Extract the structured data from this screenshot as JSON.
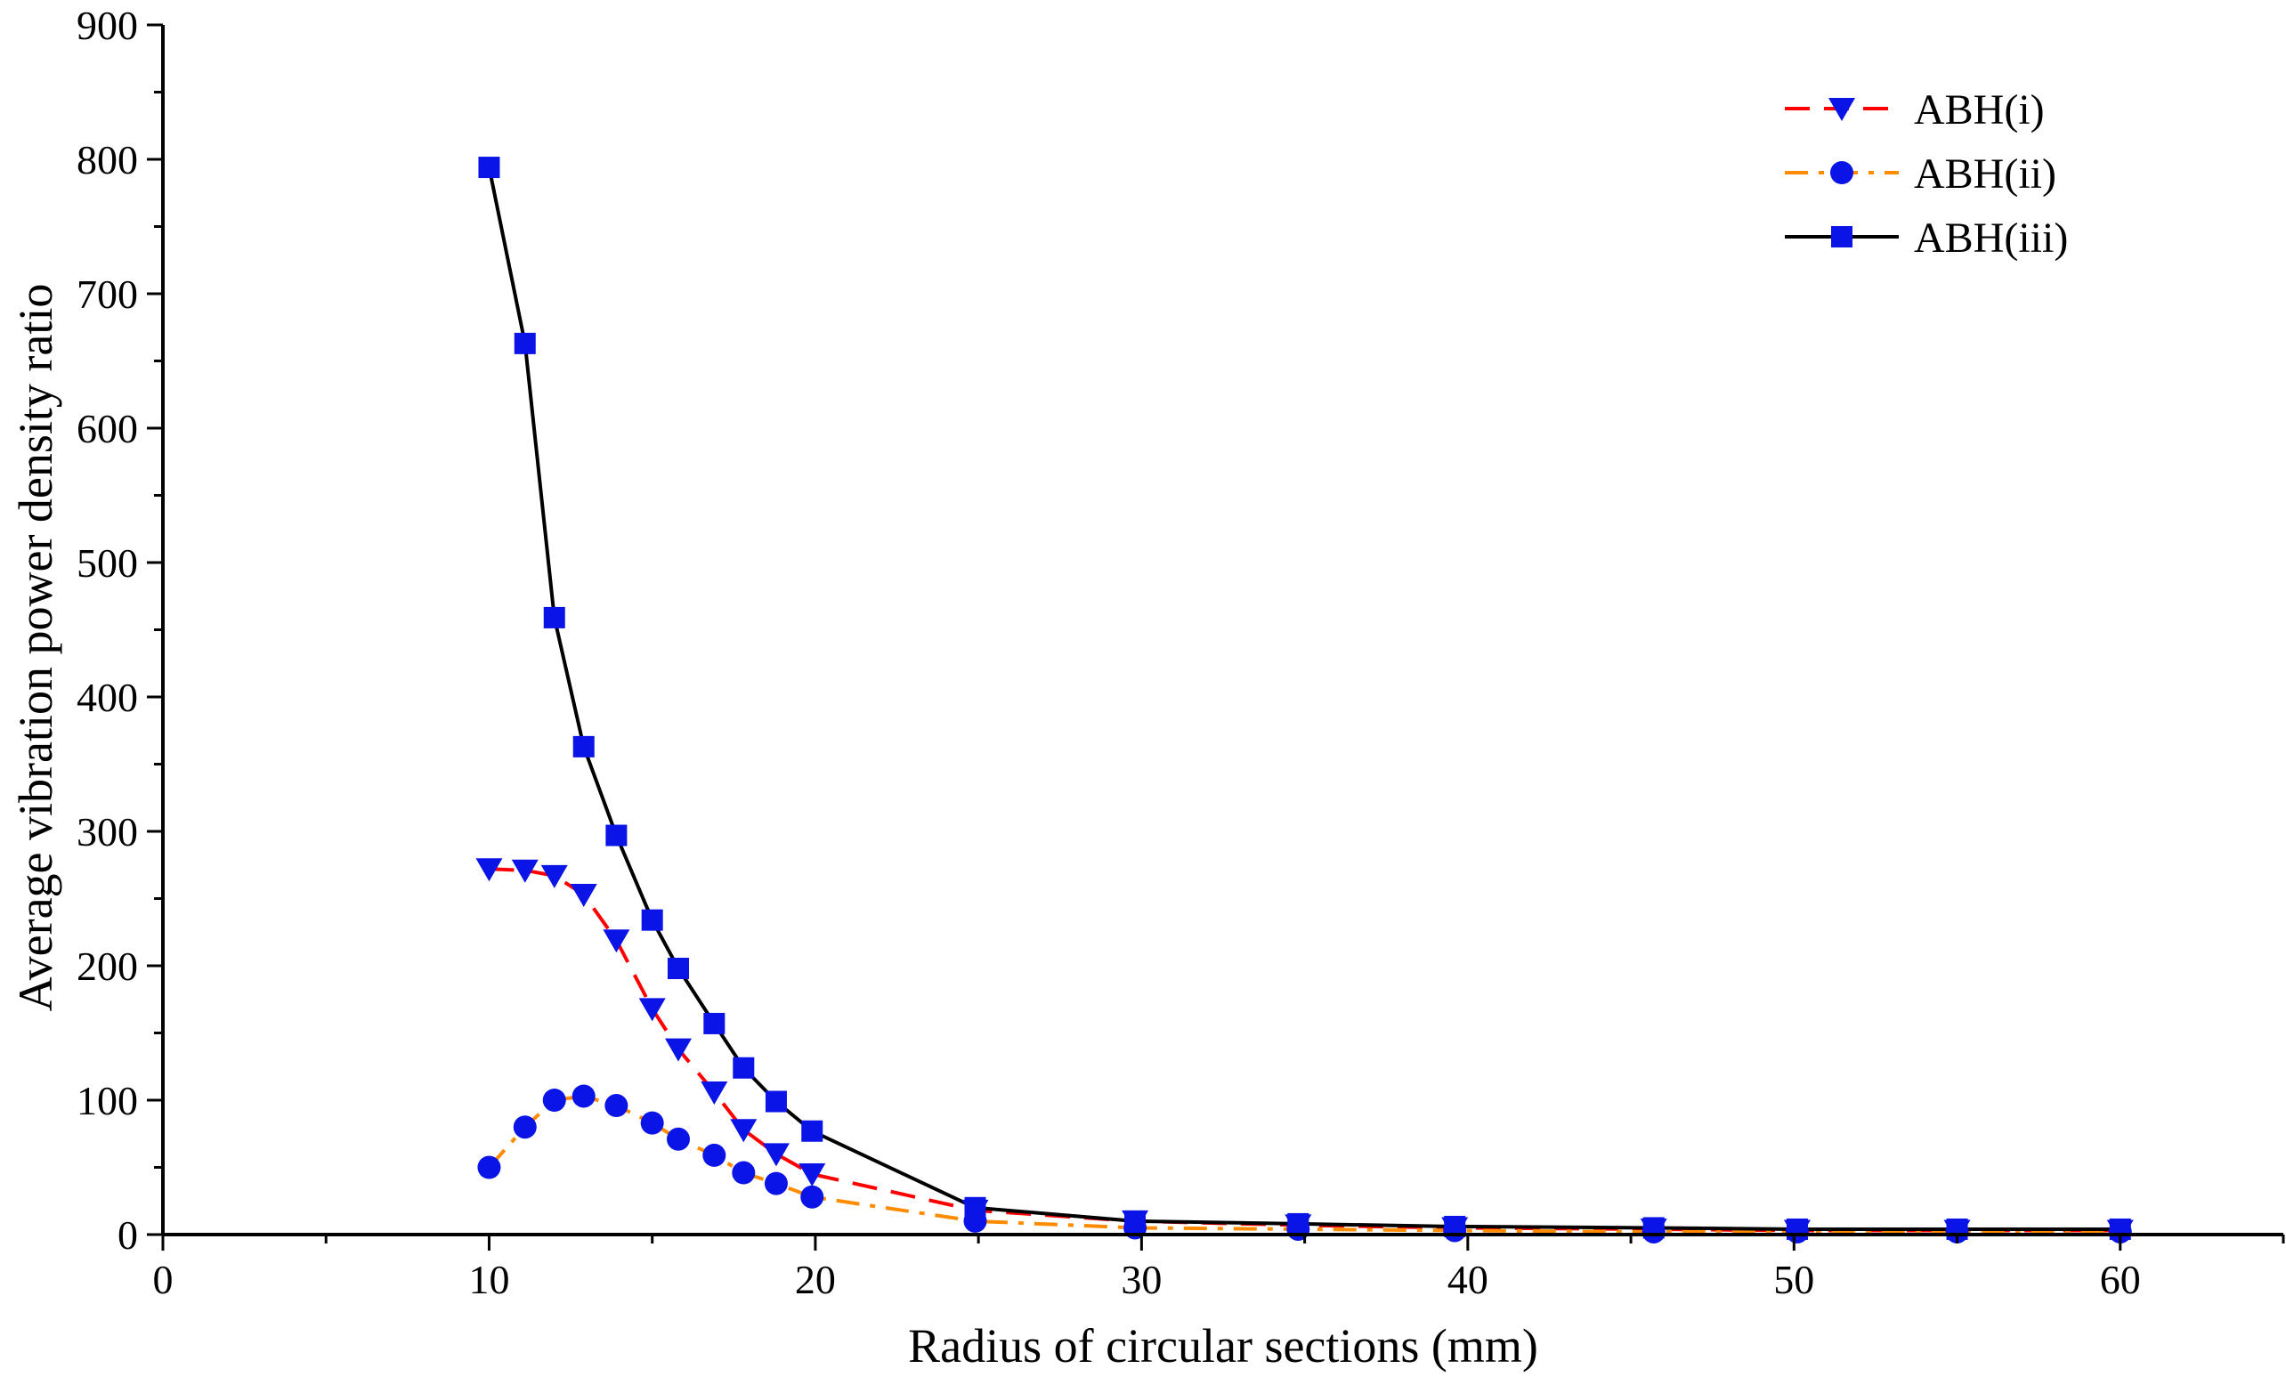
{
  "chart_data": {
    "type": "line",
    "title": "",
    "xlabel": "Radius of circular sections (mm)",
    "ylabel": "Average vibration power density ratio",
    "xlim": [
      0,
      65
    ],
    "ylim": [
      0,
      900
    ],
    "xticks": [
      0,
      10,
      20,
      30,
      40,
      50,
      60
    ],
    "xtick_labels": [
      "0",
      "10",
      "20",
      "30",
      "40",
      "50",
      "60"
    ],
    "yticks": [
      0,
      100,
      200,
      300,
      400,
      500,
      600,
      700,
      800,
      900
    ],
    "ytick_labels": [
      "0",
      "100",
      "200",
      "300",
      "400",
      "500",
      "600",
      "700",
      "800",
      "900"
    ],
    "grid": false,
    "legend_position": "top-right",
    "series": [
      {
        "name": "ABH(i)",
        "line_color": "#ff0000",
        "line_style": "dash",
        "marker": "triangle-down",
        "marker_color": "#0a14e6",
        "x": [
          10,
          11.1,
          12,
          12.9,
          13.9,
          15,
          15.8,
          16.9,
          17.8,
          18.8,
          19.9,
          24.9,
          29.8,
          34.8,
          39.6,
          45.7,
          50.1,
          55,
          60
        ],
        "y": [
          272,
          271,
          267,
          253,
          219,
          168,
          138,
          106,
          78,
          60,
          45,
          18,
          10,
          7,
          5,
          4,
          3,
          3,
          3
        ]
      },
      {
        "name": "ABH(ii)",
        "line_color": "#ff8c00",
        "line_style": "dash-dot",
        "marker": "circle",
        "marker_color": "#0a14e6",
        "x": [
          10,
          11.1,
          12,
          12.9,
          13.9,
          15,
          15.8,
          16.9,
          17.8,
          18.8,
          19.9,
          24.9,
          29.8,
          34.8,
          39.6,
          45.7,
          50.1,
          55,
          60
        ],
        "y": [
          50,
          80,
          100,
          103,
          96,
          83,
          71,
          59,
          46,
          38,
          28,
          10,
          5,
          4,
          3,
          2,
          2,
          2,
          2
        ]
      },
      {
        "name": "ABH(iii)",
        "line_color": "#000000",
        "line_style": "solid",
        "marker": "square",
        "marker_color": "#0a14e6",
        "x": [
          10,
          11.1,
          12,
          12.9,
          13.9,
          15,
          15.8,
          16.9,
          17.8,
          18.8,
          19.9,
          24.9,
          29.8,
          34.8,
          39.6,
          45.7,
          50.1,
          55,
          60
        ],
        "y": [
          794,
          663,
          459,
          363,
          297,
          234,
          198,
          157,
          124,
          99,
          77,
          20,
          10,
          8,
          6,
          5,
          4,
          4,
          4
        ]
      }
    ]
  }
}
